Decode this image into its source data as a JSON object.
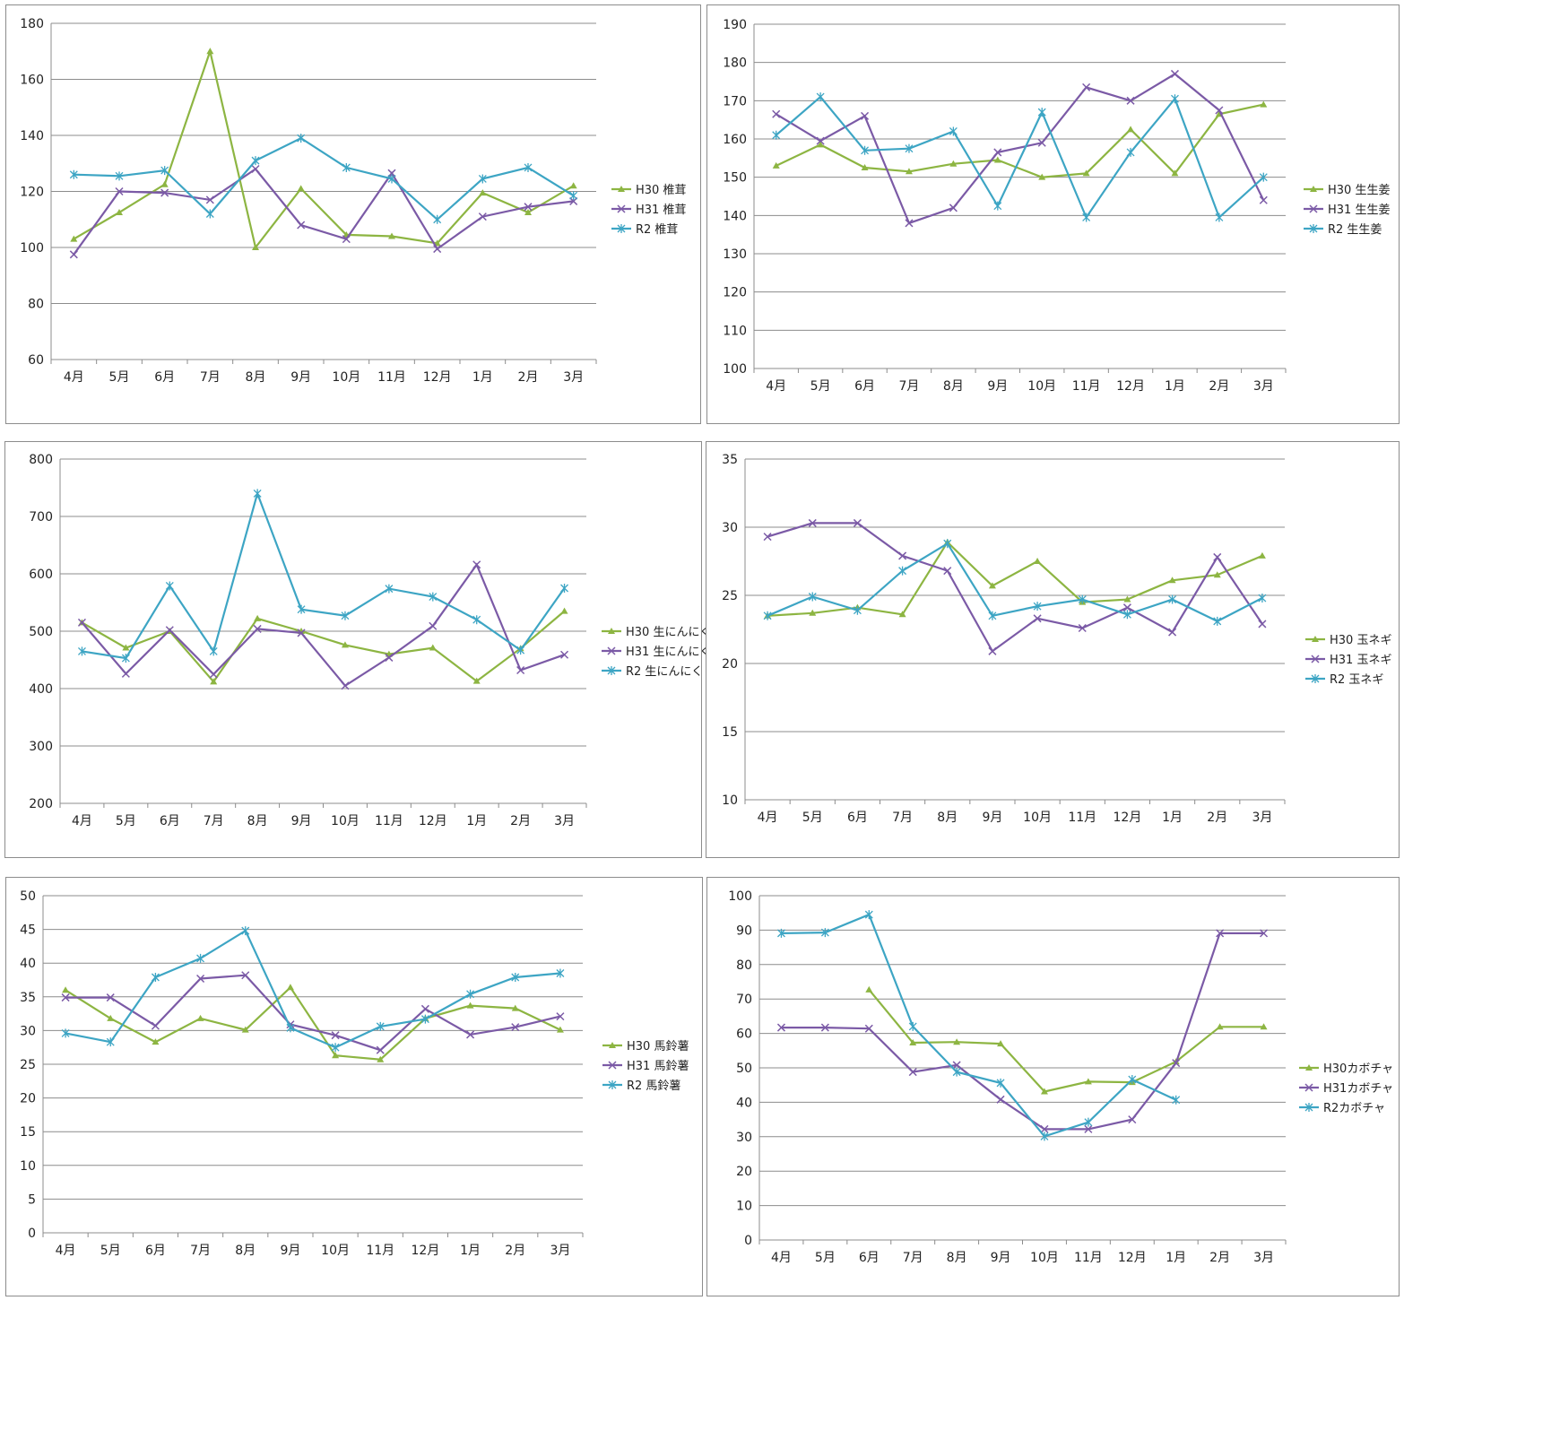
{
  "chart_data": [
    {
      "type": "line",
      "categories": [
        "4月",
        "5月",
        "6月",
        "7月",
        "8月",
        "9月",
        "10月",
        "11月",
        "12月",
        "1月",
        "2月",
        "3月"
      ],
      "ylim": [
        60,
        180
      ],
      "ystep": 20,
      "grid": true,
      "legend": "right",
      "series": [
        {
          "name": "H30 椎茸",
          "color": "#8db542",
          "marker": "triangle",
          "values": [
            103,
            112.5,
            122.5,
            170,
            100,
            121,
            104.5,
            104,
            101.5,
            119.5,
            112.5,
            122
          ]
        },
        {
          "name": "H31 椎茸",
          "color": "#7b5aa6",
          "marker": "x",
          "values": [
            97.5,
            120,
            119.5,
            117,
            128,
            108,
            103,
            126.5,
            99.5,
            111,
            114.5,
            116.5
          ]
        },
        {
          "name": "R2 椎茸",
          "color": "#3da5c4",
          "marker": "star",
          "values": [
            126,
            125.5,
            127.5,
            112,
            131,
            139,
            128.5,
            124.5,
            110,
            124.5,
            128.5,
            118.5
          ]
        }
      ]
    },
    {
      "type": "line",
      "categories": [
        "4月",
        "5月",
        "6月",
        "7月",
        "8月",
        "9月",
        "10月",
        "11月",
        "12月",
        "1月",
        "2月",
        "3月"
      ],
      "ylim": [
        100,
        190
      ],
      "ystep": 10,
      "grid": true,
      "legend": "right",
      "series": [
        {
          "name": "H30 生生姜",
          "color": "#8db542",
          "marker": "triangle",
          "values": [
            153,
            158.5,
            152.5,
            151.5,
            153.5,
            154.5,
            150,
            151,
            162.5,
            151,
            166.5,
            169
          ]
        },
        {
          "name": "H31 生生姜",
          "color": "#7b5aa6",
          "marker": "x",
          "values": [
            166.5,
            159.5,
            166,
            138,
            142,
            156.5,
            159,
            173.5,
            170,
            177,
            167.5,
            144
          ]
        },
        {
          "name": "R2 生生姜",
          "color": "#3da5c4",
          "marker": "star",
          "values": [
            161,
            171,
            157,
            157.5,
            162,
            142.5,
            167,
            139.5,
            156.5,
            170.5,
            139.5,
            150
          ]
        }
      ]
    },
    {
      "type": "line",
      "categories": [
        "4月",
        "5月",
        "6月",
        "7月",
        "8月",
        "9月",
        "10月",
        "11月",
        "12月",
        "1月",
        "2月",
        "3月"
      ],
      "ylim": [
        200,
        800
      ],
      "ystep": 100,
      "grid": true,
      "legend": "right",
      "series": [
        {
          "name": "H30 生にんにく",
          "color": "#8db542",
          "marker": "triangle",
          "values": [
            515,
            471,
            500,
            412,
            522,
            500,
            476,
            460,
            471,
            413,
            470,
            535
          ]
        },
        {
          "name": "H31 生にんにく",
          "color": "#7b5aa6",
          "marker": "x",
          "values": [
            515,
            426,
            502,
            425,
            504,
            497,
            405,
            454,
            509,
            616,
            432,
            459
          ]
        },
        {
          "name": "R2 生にんにく",
          "color": "#3da5c4",
          "marker": "star",
          "values": [
            465,
            453,
            579,
            465,
            740,
            538,
            527,
            574,
            560,
            520,
            467,
            575
          ]
        }
      ]
    },
    {
      "type": "line",
      "categories": [
        "4月",
        "5月",
        "6月",
        "7月",
        "8月",
        "9月",
        "10月",
        "11月",
        "12月",
        "1月",
        "2月",
        "3月"
      ],
      "ylim": [
        10,
        35
      ],
      "ystep": 5,
      "grid": true,
      "legend": "right",
      "series": [
        {
          "name": "H30 玉ネギ",
          "color": "#8db542",
          "marker": "triangle",
          "values": [
            23.5,
            23.7,
            24.1,
            23.6,
            28.9,
            25.7,
            27.5,
            24.5,
            24.7,
            26.1,
            26.5,
            27.9
          ]
        },
        {
          "name": "H31 玉ネギ",
          "color": "#7b5aa6",
          "marker": "x",
          "values": [
            29.3,
            30.3,
            30.3,
            27.9,
            26.8,
            20.9,
            23.3,
            22.6,
            24.1,
            22.3,
            27.8,
            22.9
          ]
        },
        {
          "name": "R2 玉ネギ",
          "color": "#3da5c4",
          "marker": "star",
          "values": [
            23.5,
            24.9,
            23.9,
            26.8,
            28.8,
            23.5,
            24.2,
            24.7,
            23.6,
            24.7,
            23.1,
            24.8
          ]
        }
      ]
    },
    {
      "type": "line",
      "categories": [
        "4月",
        "5月",
        "6月",
        "7月",
        "8月",
        "9月",
        "10月",
        "11月",
        "12月",
        "1月",
        "2月",
        "3月"
      ],
      "ylim": [
        0,
        50
      ],
      "ystep": 5,
      "grid": true,
      "legend": "right",
      "series": [
        {
          "name": "H30 馬鈴薯",
          "color": "#8db542",
          "marker": "triangle",
          "values": [
            36,
            31.8,
            28.3,
            31.8,
            30.1,
            36.4,
            26.3,
            25.7,
            31.8,
            33.7,
            33.3,
            30.1
          ]
        },
        {
          "name": "H31 馬鈴薯",
          "color": "#7b5aa6",
          "marker": "x",
          "values": [
            34.9,
            34.9,
            30.7,
            37.7,
            38.2,
            30.9,
            29.3,
            27.1,
            33.2,
            29.4,
            30.5,
            32.1
          ]
        },
        {
          "name": "R2 馬鈴薯",
          "color": "#3da5c4",
          "marker": "star",
          "values": [
            29.6,
            28.3,
            37.9,
            40.7,
            44.8,
            30.4,
            27.5,
            30.6,
            31.7,
            35.4,
            37.9,
            38.5
          ]
        }
      ]
    },
    {
      "type": "line",
      "categories": [
        "4月",
        "5月",
        "6月",
        "7月",
        "8月",
        "9月",
        "10月",
        "11月",
        "12月",
        "1月",
        "2月",
        "3月"
      ],
      "ylim": [
        0,
        100
      ],
      "ystep": 10,
      "grid": true,
      "legend": "right",
      "series": [
        {
          "name": "H30カボチャ",
          "color": "#8db542",
          "marker": "triangle",
          "values": [
            null,
            null,
            72.7,
            57.3,
            57.5,
            57,
            43.1,
            46,
            45.8,
            51.8,
            61.9,
            61.9
          ]
        },
        {
          "name": "H31カボチャ",
          "color": "#7b5aa6",
          "marker": "x",
          "values": [
            61.7,
            61.7,
            61.4,
            48.8,
            50.8,
            40.8,
            32.2,
            32.2,
            35,
            51.4,
            89.1,
            89.1
          ]
        },
        {
          "name": "R2カボチャ",
          "color": "#3da5c4",
          "marker": "star",
          "values": [
            89.1,
            89.3,
            94.5,
            62,
            48.8,
            45.6,
            30.1,
            34.2,
            46.6,
            40.7,
            null,
            null
          ]
        }
      ]
    }
  ]
}
